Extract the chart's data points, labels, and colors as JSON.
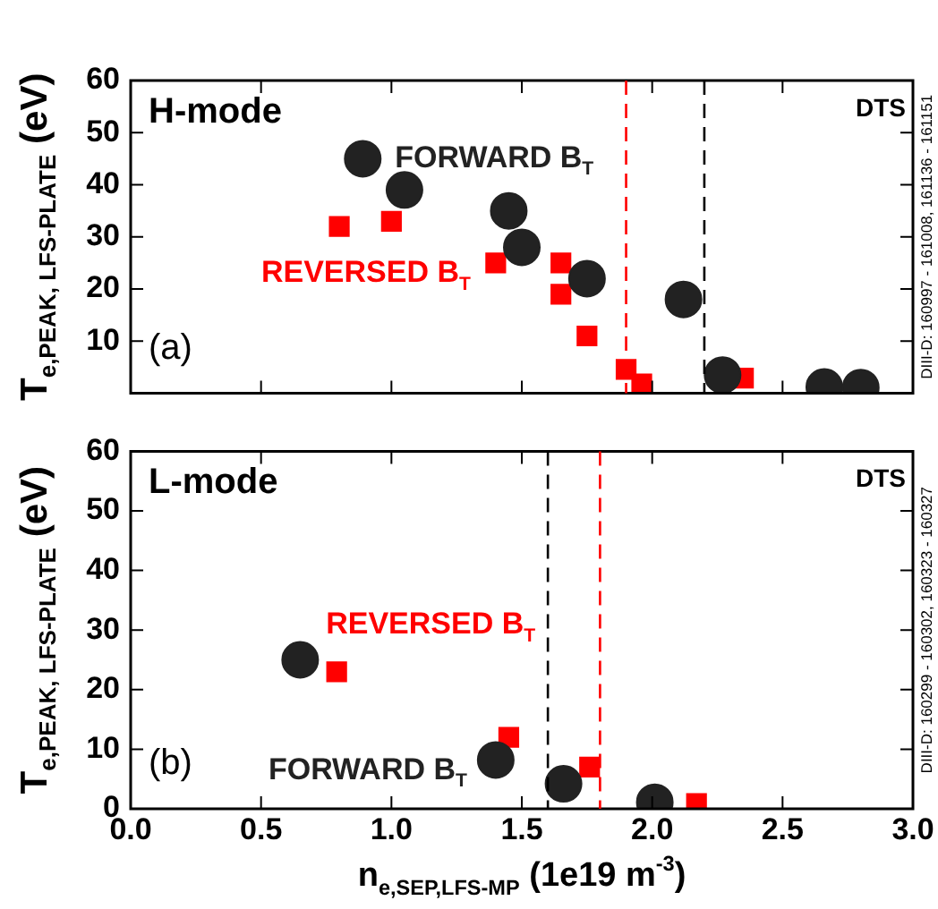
{
  "chart_data": [
    {
      "type": "scatter",
      "ylabel": "T$_{e,PEAK, LFS-PLATE}$ (eV)",
      "annotations": [
        "H-mode",
        "(a)",
        "DTS",
        "DIII-D: 160997 - 161008, 161136 - 161151"
      ],
      "xlim": [
        0,
        3
      ],
      "xticks": [
        0,
        0.5,
        1,
        1.5,
        2,
        2.5,
        3
      ],
      "ylim": [
        0,
        60
      ],
      "yticks": [
        {
          "value": 0,
          "label": null
        },
        10,
        20,
        30,
        40,
        50,
        60
      ],
      "tick_labels": "y",
      "line_style": "dashed",
      "ref_lines": [
        {
          "axis": "x",
          "value": 1.9,
          "color": "#ff0000"
        },
        {
          "axis": "x",
          "value": 2.2,
          "color": "#000000"
        }
      ],
      "series": [
        {
          "name": "FORWARD B$_{T}$",
          "color": "#222222",
          "marker": "circle",
          "x": [
            0.89,
            1.05,
            1.45,
            1.5,
            1.75,
            2.12,
            2.27,
            2.66,
            2.8
          ],
          "values": [
            45,
            39,
            35,
            28,
            22,
            18,
            3.5,
            1.2,
            1.1
          ]
        },
        {
          "name": "REVERSED B$_{T}$",
          "color": "#ff0000",
          "marker": "square",
          "x": [
            0.8,
            1.0,
            1.4,
            1.65,
            1.65,
            1.75,
            1.9,
            1.96,
            2.35
          ],
          "values": [
            32,
            33,
            25,
            25,
            19,
            11,
            4.6,
            1.8,
            2.9
          ]
        }
      ]
    },
    {
      "type": "scatter",
      "xlabel": "n$_{e,SEP,LFS-MP}$ (1e19 m$^{-3}$)",
      "ylabel": "T$_{e,PEAK, LFS-PLATE}$ (eV)",
      "annotations": [
        "L-mode",
        "(b)",
        "DTS",
        "DIII-D: 160299 - 160302, 160323 - 160327"
      ],
      "xlim": [
        0,
        3
      ],
      "xticks": [
        {
          "value": 0,
          "label": "0.0"
        },
        0.5,
        {
          "value": 1,
          "label": "1.0"
        },
        1.5,
        {
          "value": 2,
          "label": "2.0"
        },
        2.5,
        {
          "value": 3,
          "label": "3.0"
        }
      ],
      "ylim": [
        0,
        60
      ],
      "yticks": [
        0,
        10,
        20,
        30,
        40,
        50,
        60
      ],
      "line_style": "dashed",
      "ref_lines": [
        {
          "axis": "x",
          "value": 1.6,
          "color": "#000000"
        },
        {
          "axis": "x",
          "value": 1.8,
          "color": "#ff0000"
        }
      ],
      "series": [
        {
          "name": "FORWARD B$_{T}$",
          "color": "#222222",
          "marker": "circle",
          "x": [
            0.65,
            1.4,
            1.66,
            2.01
          ],
          "values": [
            25,
            8.2,
            4.2,
            1.1
          ]
        },
        {
          "name": "REVERSED B$_{T}$",
          "color": "#ff0000",
          "marker": "square",
          "x": [
            0.79,
            1.45,
            1.76,
            2.17
          ],
          "values": [
            23,
            12,
            7,
            0.9
          ]
        }
      ]
    }
  ]
}
